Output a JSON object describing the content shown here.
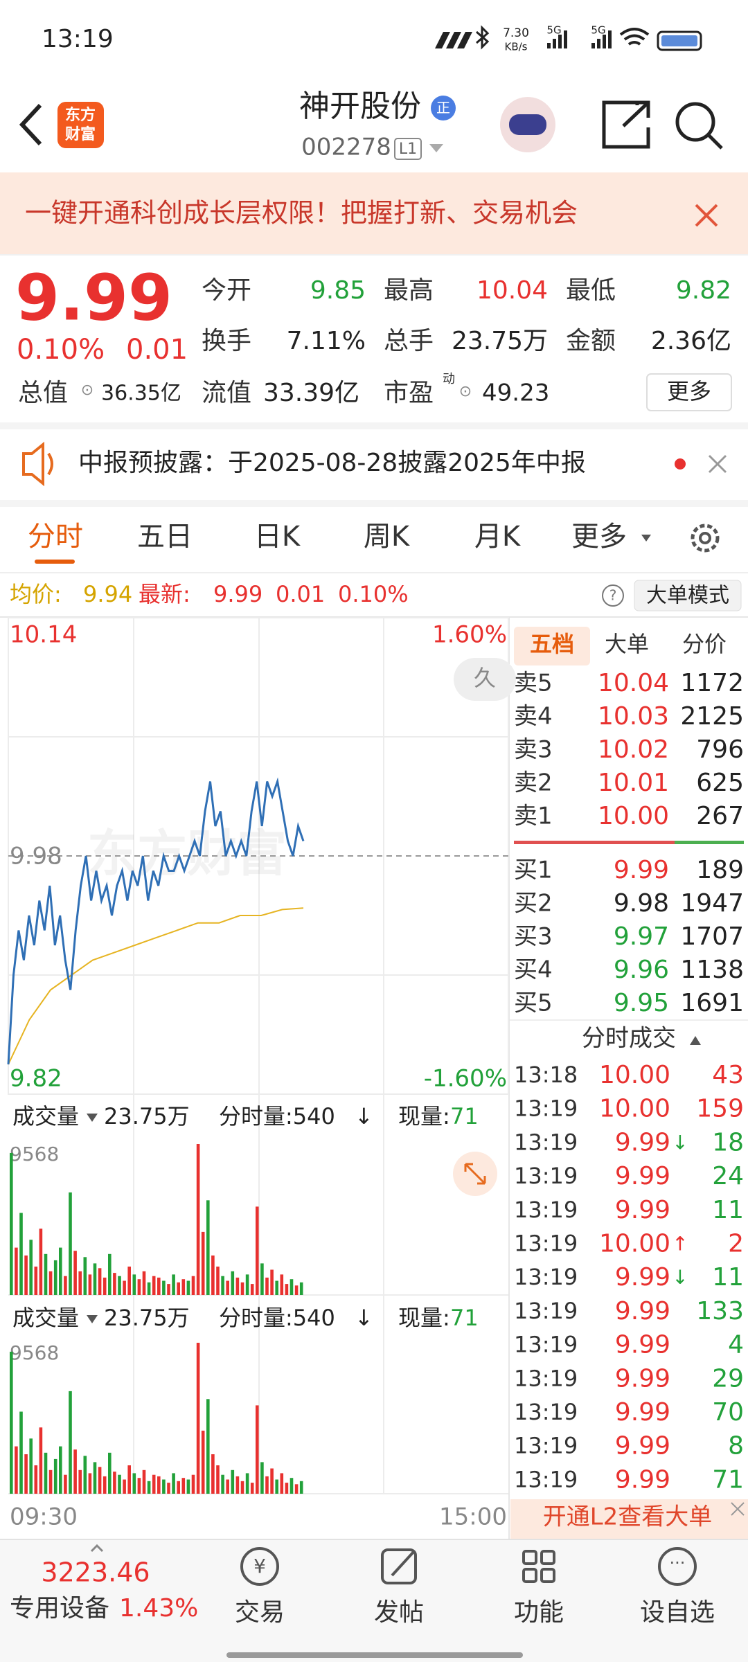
{
  "status_bar": {
    "time": "13:19",
    "speed": "7.30",
    "speed_unit": "KB/s",
    "network": [
      "5G",
      "5G"
    ]
  },
  "header": {
    "logo": [
      "东方",
      "财富"
    ],
    "title": "神开股份",
    "badge": "正",
    "code": "002278",
    "level": "L1"
  },
  "banner": {
    "text": "一键开通科创成长层权限！把握打新、交易机会"
  },
  "quote": {
    "price": "9.99",
    "change_pct": "0.10%",
    "change": "0.01",
    "fields": [
      {
        "label": "今开",
        "value": "9.85"
      },
      {
        "label": "最高",
        "value": "10.04"
      },
      {
        "label": "最低",
        "value": "9.82"
      },
      {
        "label": "换手",
        "value": "7.11%"
      },
      {
        "label": "总手",
        "value": "23.75万"
      },
      {
        "label": "金额",
        "value": "2.36亿"
      }
    ],
    "total_value": {
      "label": "总值",
      "value": "36.35亿"
    },
    "float_value": {
      "label": "流值",
      "value": "33.39亿"
    },
    "pe": {
      "label": "市盈",
      "sup": "动",
      "value": "49.23"
    },
    "more": "更多"
  },
  "notice": {
    "text": "中报预披露：于2025-08-28披露2025年中报"
  },
  "tabs": [
    "分时",
    "五日",
    "日K",
    "周K",
    "月K",
    "更多"
  ],
  "info": {
    "avg_label": "均价:",
    "avg": "9.94",
    "latest_label": "最新:",
    "latest": "9.99",
    "change": "0.01",
    "pct": "0.10%",
    "mode": "大单模式"
  },
  "chart": {
    "ylim": [
      9.82,
      10.14
    ],
    "mid": 9.98,
    "top_pct": "1.60%",
    "bottom_pct": "-1.60%",
    "watermark": "东方财富",
    "badge": "久",
    "price": [
      9.84,
      9.9,
      9.93,
      9.91,
      9.94,
      9.92,
      9.95,
      9.93,
      9.96,
      9.92,
      9.94,
      9.91,
      9.89,
      9.93,
      9.96,
      9.98,
      9.95,
      9.97,
      9.95,
      9.96,
      9.94,
      9.96,
      9.97,
      9.95,
      9.97,
      9.96,
      9.98,
      9.95,
      9.97,
      9.96,
      9.98,
      9.97,
      9.97,
      9.98,
      9.97,
      9.98,
      9.99,
      9.98,
      10.01,
      10.03,
      10.0,
      10.01,
      9.98,
      9.99,
      9.98,
      9.99,
      9.98,
      10.01,
      10.03,
      10.0,
      10.03,
      10.02,
      10.03,
      10.01,
      9.99,
      9.98,
      10.0,
      9.99
    ],
    "avg": [
      9.84,
      9.87,
      9.89,
      9.9,
      9.91,
      9.915,
      9.92,
      9.925,
      9.93,
      9.935,
      9.935,
      9.94,
      9.94,
      9.944,
      9.945
    ],
    "xlabels": [
      "09:30",
      "15:00"
    ]
  },
  "volume": {
    "label": "成交量",
    "total": "23.75万",
    "minute_label": "分时量:540",
    "arrow": "↓",
    "now_label": "现量:",
    "now": "71",
    "max": 9568,
    "values": [
      9000,
      3000,
      5200,
      2500,
      3500,
      1800,
      4200,
      2600,
      1500,
      2200,
      3000,
      1200,
      6500,
      2800,
      1500,
      2400,
      1300,
      2000,
      1700,
      1100,
      2600,
      1400,
      1200,
      900,
      1800,
      1300,
      1000,
      1500,
      800,
      1200,
      1100,
      900,
      700,
      1300,
      800,
      1000,
      900,
      1200,
      9568,
      4000,
      6000,
      2500,
      1800,
      1200,
      900,
      1500,
      1100,
      800,
      1300,
      700,
      5600,
      2000,
      1100,
      1600,
      900,
      1300,
      700,
      1000,
      600,
      800
    ],
    "dirs": [
      "d",
      "u",
      "d",
      "u",
      "d",
      "u",
      "u",
      "d",
      "u",
      "d",
      "d",
      "u",
      "d",
      "u",
      "u",
      "d",
      "u",
      "d",
      "u",
      "u",
      "d",
      "u",
      "d",
      "u",
      "u",
      "d",
      "u",
      "u",
      "d",
      "u",
      "u",
      "d",
      "u",
      "d",
      "u",
      "u",
      "d",
      "u",
      "u",
      "u",
      "d",
      "u",
      "u",
      "d",
      "u",
      "d",
      "u",
      "u",
      "d",
      "u",
      "u",
      "d",
      "u",
      "u",
      "d",
      "u",
      "u",
      "d",
      "u",
      "d"
    ],
    "colors": {
      "u": "#e8312f",
      "d": "#22a13a"
    }
  },
  "order_book": {
    "tabs": [
      "五档",
      "大单",
      "分价"
    ],
    "asks": [
      {
        "label": "卖5",
        "price": "10.04",
        "volume": "1172"
      },
      {
        "label": "卖4",
        "price": "10.03",
        "volume": "2125"
      },
      {
        "label": "卖3",
        "price": "10.02",
        "volume": "796"
      },
      {
        "label": "卖2",
        "price": "10.01",
        "volume": "625"
      },
      {
        "label": "卖1",
        "price": "10.00",
        "volume": "267"
      }
    ],
    "bids": [
      {
        "label": "买1",
        "price": "9.99",
        "volume": "189"
      },
      {
        "label": "买2",
        "price": "9.98",
        "volume": "1947"
      },
      {
        "label": "买3",
        "price": "9.97",
        "volume": "1707"
      },
      {
        "label": "买4",
        "price": "9.96",
        "volume": "1138"
      },
      {
        "label": "买5",
        "price": "9.95",
        "volume": "1691"
      }
    ]
  },
  "trades": {
    "title": "分时成交",
    "rows": [
      {
        "time": "13:18",
        "price": "10.00",
        "volume": "43"
      },
      {
        "time": "13:19",
        "price": "10.00",
        "volume": "159"
      },
      {
        "time": "13:19",
        "price": "9.99",
        "arrow": "↓",
        "volume": "18"
      },
      {
        "time": "13:19",
        "price": "9.99",
        "volume": "24"
      },
      {
        "time": "13:19",
        "price": "9.99",
        "volume": "11"
      },
      {
        "time": "13:19",
        "price": "10.00",
        "arrow": "↑",
        "volume": "2"
      },
      {
        "time": "13:19",
        "price": "9.99",
        "arrow": "↓",
        "volume": "11"
      },
      {
        "time": "13:19",
        "price": "9.99",
        "volume": "133"
      },
      {
        "time": "13:19",
        "price": "9.99",
        "volume": "4"
      },
      {
        "time": "13:19",
        "price": "9.99",
        "volume": "29"
      },
      {
        "time": "13:19",
        "price": "9.99",
        "volume": "70"
      },
      {
        "time": "13:19",
        "price": "9.99",
        "volume": "8"
      },
      {
        "time": "13:19",
        "price": "9.99",
        "volume": "71"
      }
    ]
  },
  "l2": "开通L2查看大单",
  "nav": {
    "index": "3223.46",
    "sector": "专用设备",
    "sector_pct": "1.43%",
    "items": [
      "交易",
      "发帖",
      "功能",
      "设自选"
    ]
  }
}
